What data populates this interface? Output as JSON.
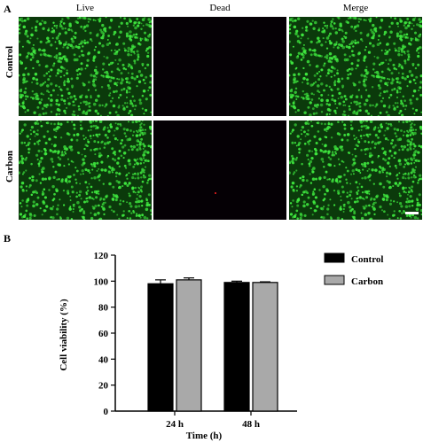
{
  "panel_a": {
    "label": "A",
    "columns": [
      "Live",
      "Dead",
      "Merge"
    ],
    "rows": [
      "Control",
      "Carbon"
    ]
  },
  "panel_b": {
    "label": "B"
  },
  "colors": {
    "live_bg": "#0b3a0b",
    "live_cell": "#3fe83f",
    "dead_bg": "#050005",
    "dead_cell": "#ff2020",
    "control": "#000000",
    "carbon": "#a9a9a9"
  },
  "chart_data": {
    "type": "bar",
    "categories": [
      "24 h",
      "48 h"
    ],
    "series": [
      {
        "name": "Control",
        "values": [
          98,
          99
        ],
        "errors": [
          3,
          1
        ],
        "color": "#000000"
      },
      {
        "name": "Carbon",
        "values": [
          101,
          99
        ],
        "errors": [
          1.5,
          0.5
        ],
        "color": "#a9a9a9"
      }
    ],
    "xlabel": "Time (h)",
    "ylabel": "Cell viability (%)",
    "ylim": [
      0,
      120
    ],
    "yticks": [
      0,
      20,
      40,
      60,
      80,
      100,
      120
    ],
    "legend": "right",
    "grid": false
  }
}
